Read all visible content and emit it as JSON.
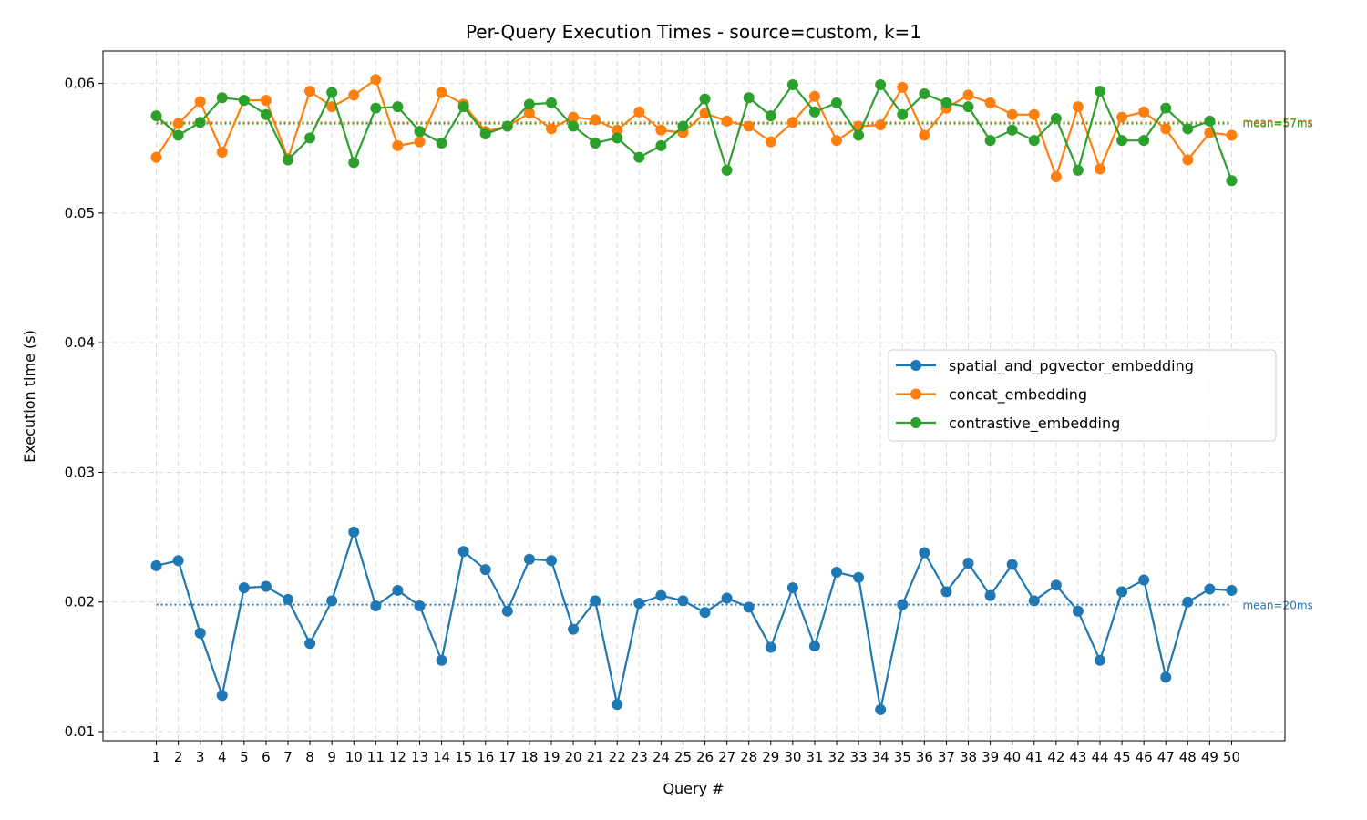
{
  "chart_data": {
    "type": "line",
    "title": "Per-Query Execution Times - source=custom, k=1",
    "xlabel": "Query #",
    "ylabel": "Execution time (s)",
    "ylim": [
      0.0093,
      0.0625
    ],
    "yticks": [
      0.01,
      0.02,
      0.03,
      0.04,
      0.05,
      0.06
    ],
    "ytick_labels": [
      "0.01",
      "0.02",
      "0.03",
      "0.04",
      "0.05",
      "0.06"
    ],
    "x": [
      1,
      2,
      3,
      4,
      5,
      6,
      7,
      8,
      9,
      10,
      11,
      12,
      13,
      14,
      15,
      16,
      17,
      18,
      19,
      20,
      21,
      22,
      23,
      24,
      25,
      26,
      27,
      28,
      29,
      30,
      31,
      32,
      33,
      34,
      35,
      36,
      37,
      38,
      39,
      40,
      41,
      42,
      43,
      44,
      45,
      46,
      47,
      48,
      49,
      50
    ],
    "xtick_labels": [
      "1",
      "2",
      "3",
      "4",
      "5",
      "6",
      "7",
      "8",
      "9",
      "10",
      "11",
      "12",
      "13",
      "14",
      "15",
      "16",
      "17",
      "18",
      "19",
      "20",
      "21",
      "22",
      "23",
      "24",
      "25",
      "26",
      "27",
      "28",
      "29",
      "30",
      "31",
      "32",
      "33",
      "34",
      "35",
      "36",
      "37",
      "38",
      "39",
      "40",
      "41",
      "42",
      "43",
      "44",
      "45",
      "46",
      "47",
      "48",
      "49",
      "50"
    ],
    "grid": true,
    "legend_position": "center-right",
    "series": [
      {
        "name": "spatial_and_pgvector_embedding",
        "color": "#1f77b4",
        "values": [
          0.0228,
          0.0232,
          0.0176,
          0.0128,
          0.0211,
          0.0212,
          0.0202,
          0.0168,
          0.0201,
          0.0254,
          0.0197,
          0.0209,
          0.0197,
          0.0155,
          0.0239,
          0.0225,
          0.0193,
          0.0233,
          0.0232,
          0.0179,
          0.0201,
          0.0121,
          0.0199,
          0.0205,
          0.0201,
          0.0192,
          0.0203,
          0.0196,
          0.0165,
          0.0211,
          0.0166,
          0.0223,
          0.0219,
          0.0117,
          0.0198,
          0.0238,
          0.0208,
          0.023,
          0.0205,
          0.0229,
          0.0201,
          0.0213,
          0.0193,
          0.0155,
          0.0208,
          0.0217,
          0.0142,
          0.02,
          0.021,
          0.0209
        ],
        "mean": 0.0198,
        "mean_label": "mean=20ms"
      },
      {
        "name": "concat_embedding",
        "color": "#ff7f0e",
        "values": [
          0.0543,
          0.0569,
          0.0586,
          0.0547,
          0.0587,
          0.0587,
          0.0542,
          0.0594,
          0.0582,
          0.0591,
          0.0603,
          0.0552,
          0.0555,
          0.0593,
          0.0584,
          0.0563,
          0.0567,
          0.0577,
          0.0565,
          0.0574,
          0.0572,
          0.0564,
          0.0578,
          0.0564,
          0.0562,
          0.0577,
          0.0571,
          0.0567,
          0.0555,
          0.057,
          0.059,
          0.0556,
          0.0567,
          0.0568,
          0.0597,
          0.056,
          0.0581,
          0.0591,
          0.0585,
          0.0576,
          0.0576,
          0.0528,
          0.0582,
          0.0534,
          0.0574,
          0.0578,
          0.0565,
          0.0541,
          0.0562,
          0.056
        ],
        "mean": 0.057,
        "mean_label": "mean=57ms"
      },
      {
        "name": "contrastive_embedding",
        "color": "#2ca02c",
        "values": [
          0.0575,
          0.056,
          0.057,
          0.0589,
          0.0587,
          0.0576,
          0.0541,
          0.0558,
          0.0593,
          0.0539,
          0.0581,
          0.0582,
          0.0563,
          0.0554,
          0.0582,
          0.0561,
          0.0567,
          0.0584,
          0.0585,
          0.0567,
          0.0554,
          0.0558,
          0.0543,
          0.0552,
          0.0567,
          0.0588,
          0.0533,
          0.0589,
          0.0575,
          0.0599,
          0.0578,
          0.0585,
          0.056,
          0.0599,
          0.0576,
          0.0592,
          0.0585,
          0.0582,
          0.0556,
          0.0564,
          0.0556,
          0.0573,
          0.0533,
          0.0594,
          0.0556,
          0.0556,
          0.0581,
          0.0565,
          0.0571,
          0.0525
        ],
        "mean": 0.0569,
        "mean_label": "mean=57ms"
      }
    ]
  }
}
